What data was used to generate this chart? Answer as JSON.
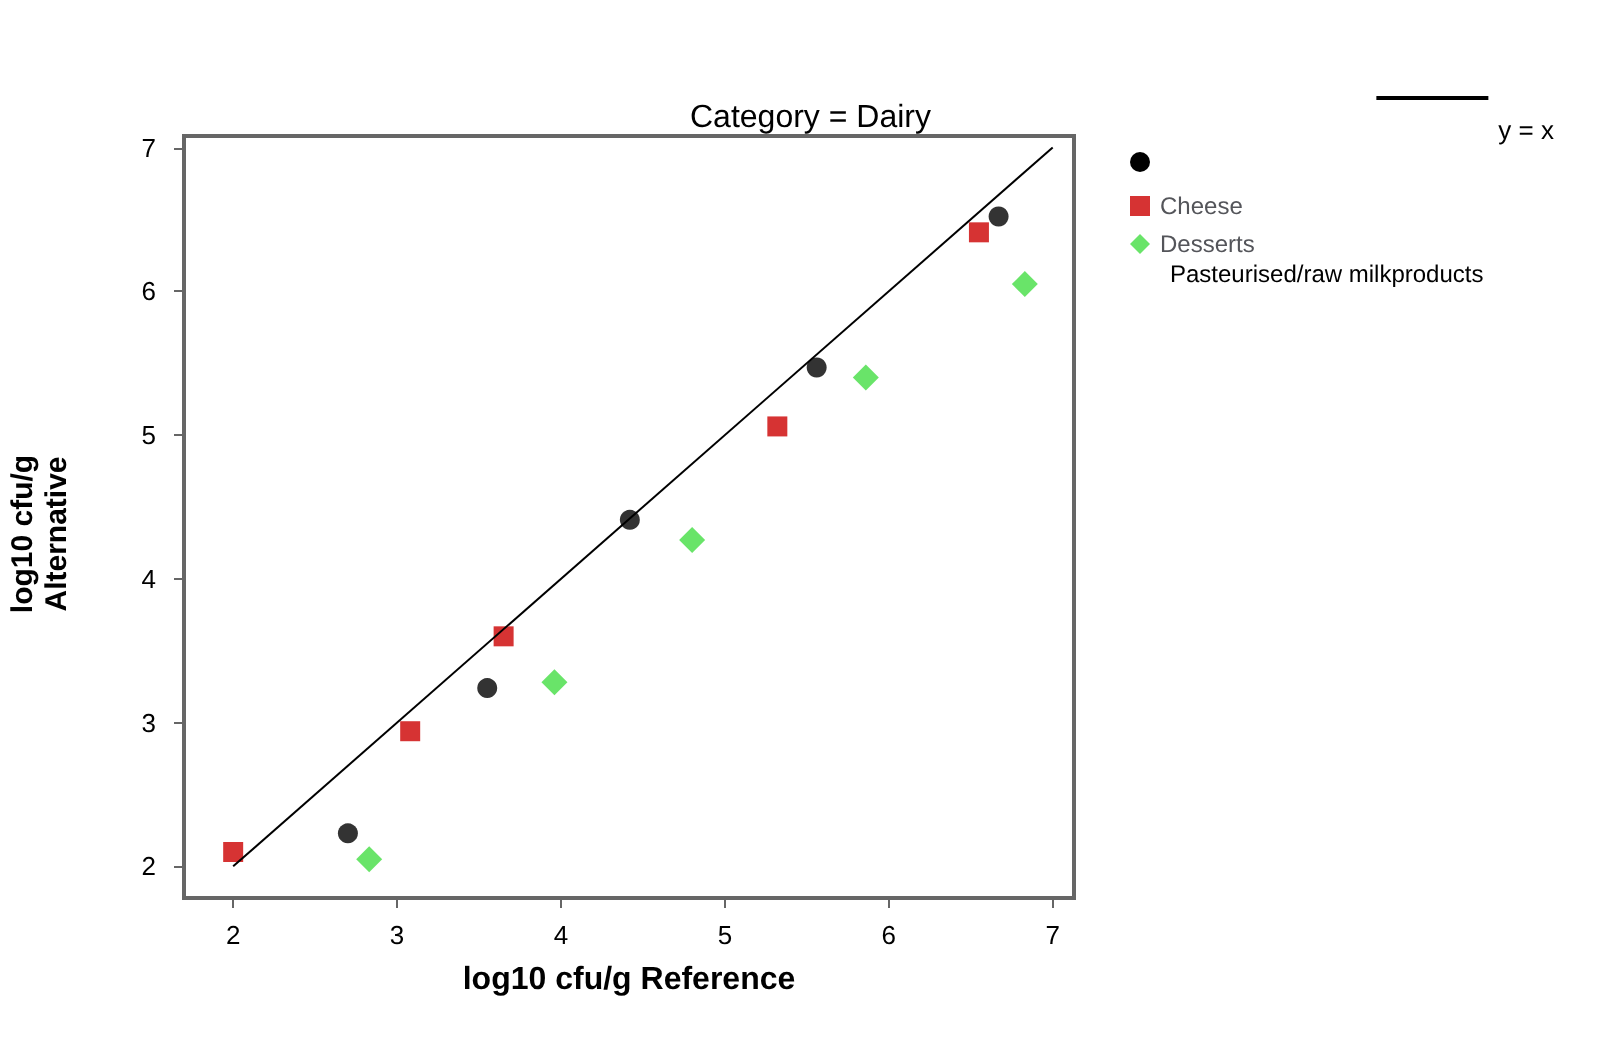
{
  "chart_data": {
    "type": "scatter",
    "title": "Category = Dairy",
    "xlabel": "log10 cfu/g Reference",
    "ylabel": "log10 cfu/g Alternative",
    "xlim": [
      1.7,
      7.13
    ],
    "xticks": [
      2,
      3,
      4,
      5,
      6,
      7
    ],
    "ylim": [
      1.78,
      7.08
    ],
    "yticks": [
      2,
      3,
      4,
      5,
      6,
      7
    ],
    "grid": false,
    "legend": "right",
    "annotations": [
      "Pasteurised/raw milkproducts"
    ],
    "series": [
      {
        "type": "line",
        "name": "y = x",
        "color": "#000000",
        "marker": "none",
        "x": [
          2,
          7
        ],
        "values": [
          2,
          7
        ]
      },
      {
        "color": "#000000",
        "marker": "circle",
        "x": [
          2.7,
          3.55,
          4.42,
          5.56,
          6.67
        ],
        "values": [
          2.23,
          3.24,
          4.41,
          5.47,
          6.52
        ]
      },
      {
        "name": "Cheese",
        "color": "#cc0000",
        "marker": "square",
        "x": [
          2.0,
          3.08,
          3.65,
          5.32,
          6.55
        ],
        "values": [
          2.1,
          2.94,
          3.6,
          5.06,
          6.41
        ]
      },
      {
        "name": "Desserts",
        "color": "#44dd44",
        "marker": "diamond",
        "x": [
          2.83,
          3.96,
          4.8,
          5.86,
          6.83
        ],
        "values": [
          2.05,
          3.28,
          4.27,
          5.4,
          6.05
        ]
      }
    ]
  }
}
